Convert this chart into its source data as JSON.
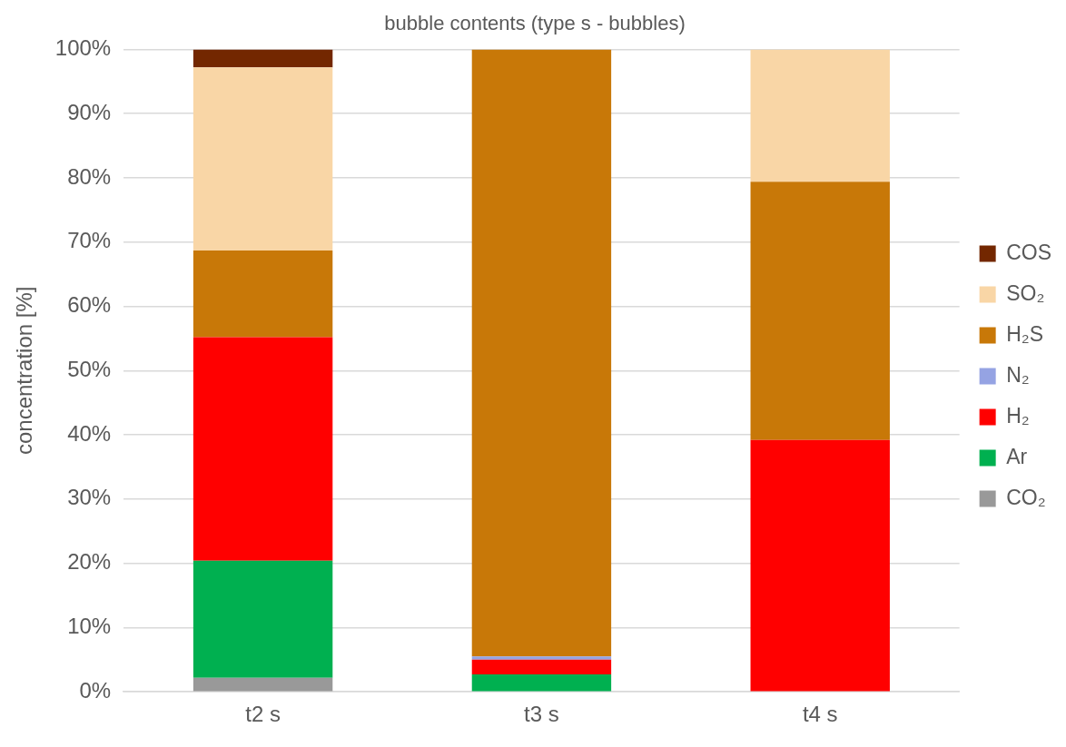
{
  "chart_data": {
    "type": "bar",
    "title": "bubble contents (type s - bubbles)",
    "ylabel": "concentration [%]",
    "stacked": true,
    "grid": "y",
    "legend": "right",
    "categories": [
      "t2 s",
      "t3 s",
      "t4 s"
    ],
    "ylim": [
      0,
      100
    ],
    "yticks": [
      {
        "value": 0,
        "label": "0%"
      },
      {
        "value": 10,
        "label": "10%"
      },
      {
        "value": 20,
        "label": "20%"
      },
      {
        "value": 30,
        "label": "30%"
      },
      {
        "value": 40,
        "label": "40%"
      },
      {
        "value": 50,
        "label": "50%"
      },
      {
        "value": 60,
        "label": "60%"
      },
      {
        "value": 70,
        "label": "70%"
      },
      {
        "value": 80,
        "label": "80%"
      },
      {
        "value": 90,
        "label": "90%"
      },
      {
        "value": 100,
        "label": "100%"
      }
    ],
    "series": [
      {
        "name": "CO₂",
        "color": "#999999",
        "values": [
          2.2,
          0,
          0
        ]
      },
      {
        "name": "Ar",
        "color": "#00b050",
        "values": [
          18.2,
          2.7,
          0
        ]
      },
      {
        "name": "H₂",
        "color": "#ff0000",
        "values": [
          34.8,
          2.3,
          39.2
        ]
      },
      {
        "name": "N₂",
        "color": "#95a3e3",
        "values": [
          0,
          0.5,
          0
        ]
      },
      {
        "name": "H₂S",
        "color": "#c87808",
        "values": [
          13.5,
          94.5,
          40.2
        ]
      },
      {
        "name": "SO₂",
        "color": "#f9d6a6",
        "values": [
          28.5,
          0,
          20.6
        ]
      },
      {
        "name": "COS",
        "color": "#732700",
        "values": [
          2.8,
          0,
          0
        ]
      }
    ]
  }
}
